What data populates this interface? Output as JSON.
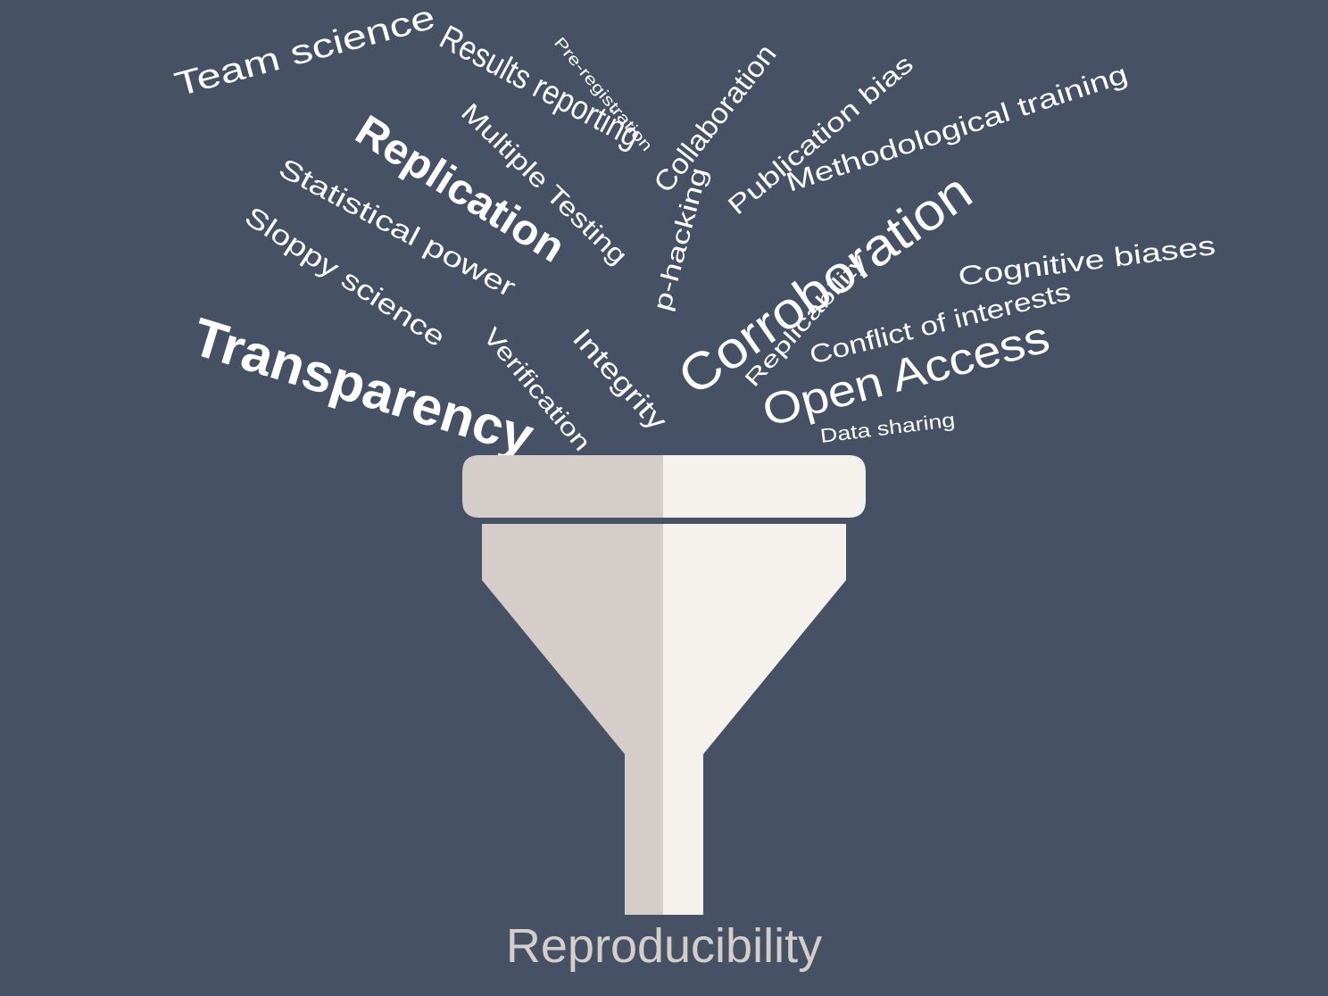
{
  "colors": {
    "background": "#465166",
    "word": "#ffffff",
    "funnel_left": "#d5cdca",
    "funnel_right": "#f5f1ed",
    "output_text": "#d5cdca"
  },
  "words": [
    "Results reporting",
    "Pre-registration",
    "Collaboration",
    "Publication bias",
    "Team science",
    "Multiple Testing",
    "Methodological training",
    "Replication",
    "Statistical power",
    "p-hacking",
    "Corroboration",
    "Sloppy science",
    "Cognitive biases",
    "Replicability",
    "Conflict of interests",
    "Transparency",
    "Verification",
    "Integrity",
    "Open Access",
    "Data sharing"
  ],
  "output_label": "Reproducibility"
}
